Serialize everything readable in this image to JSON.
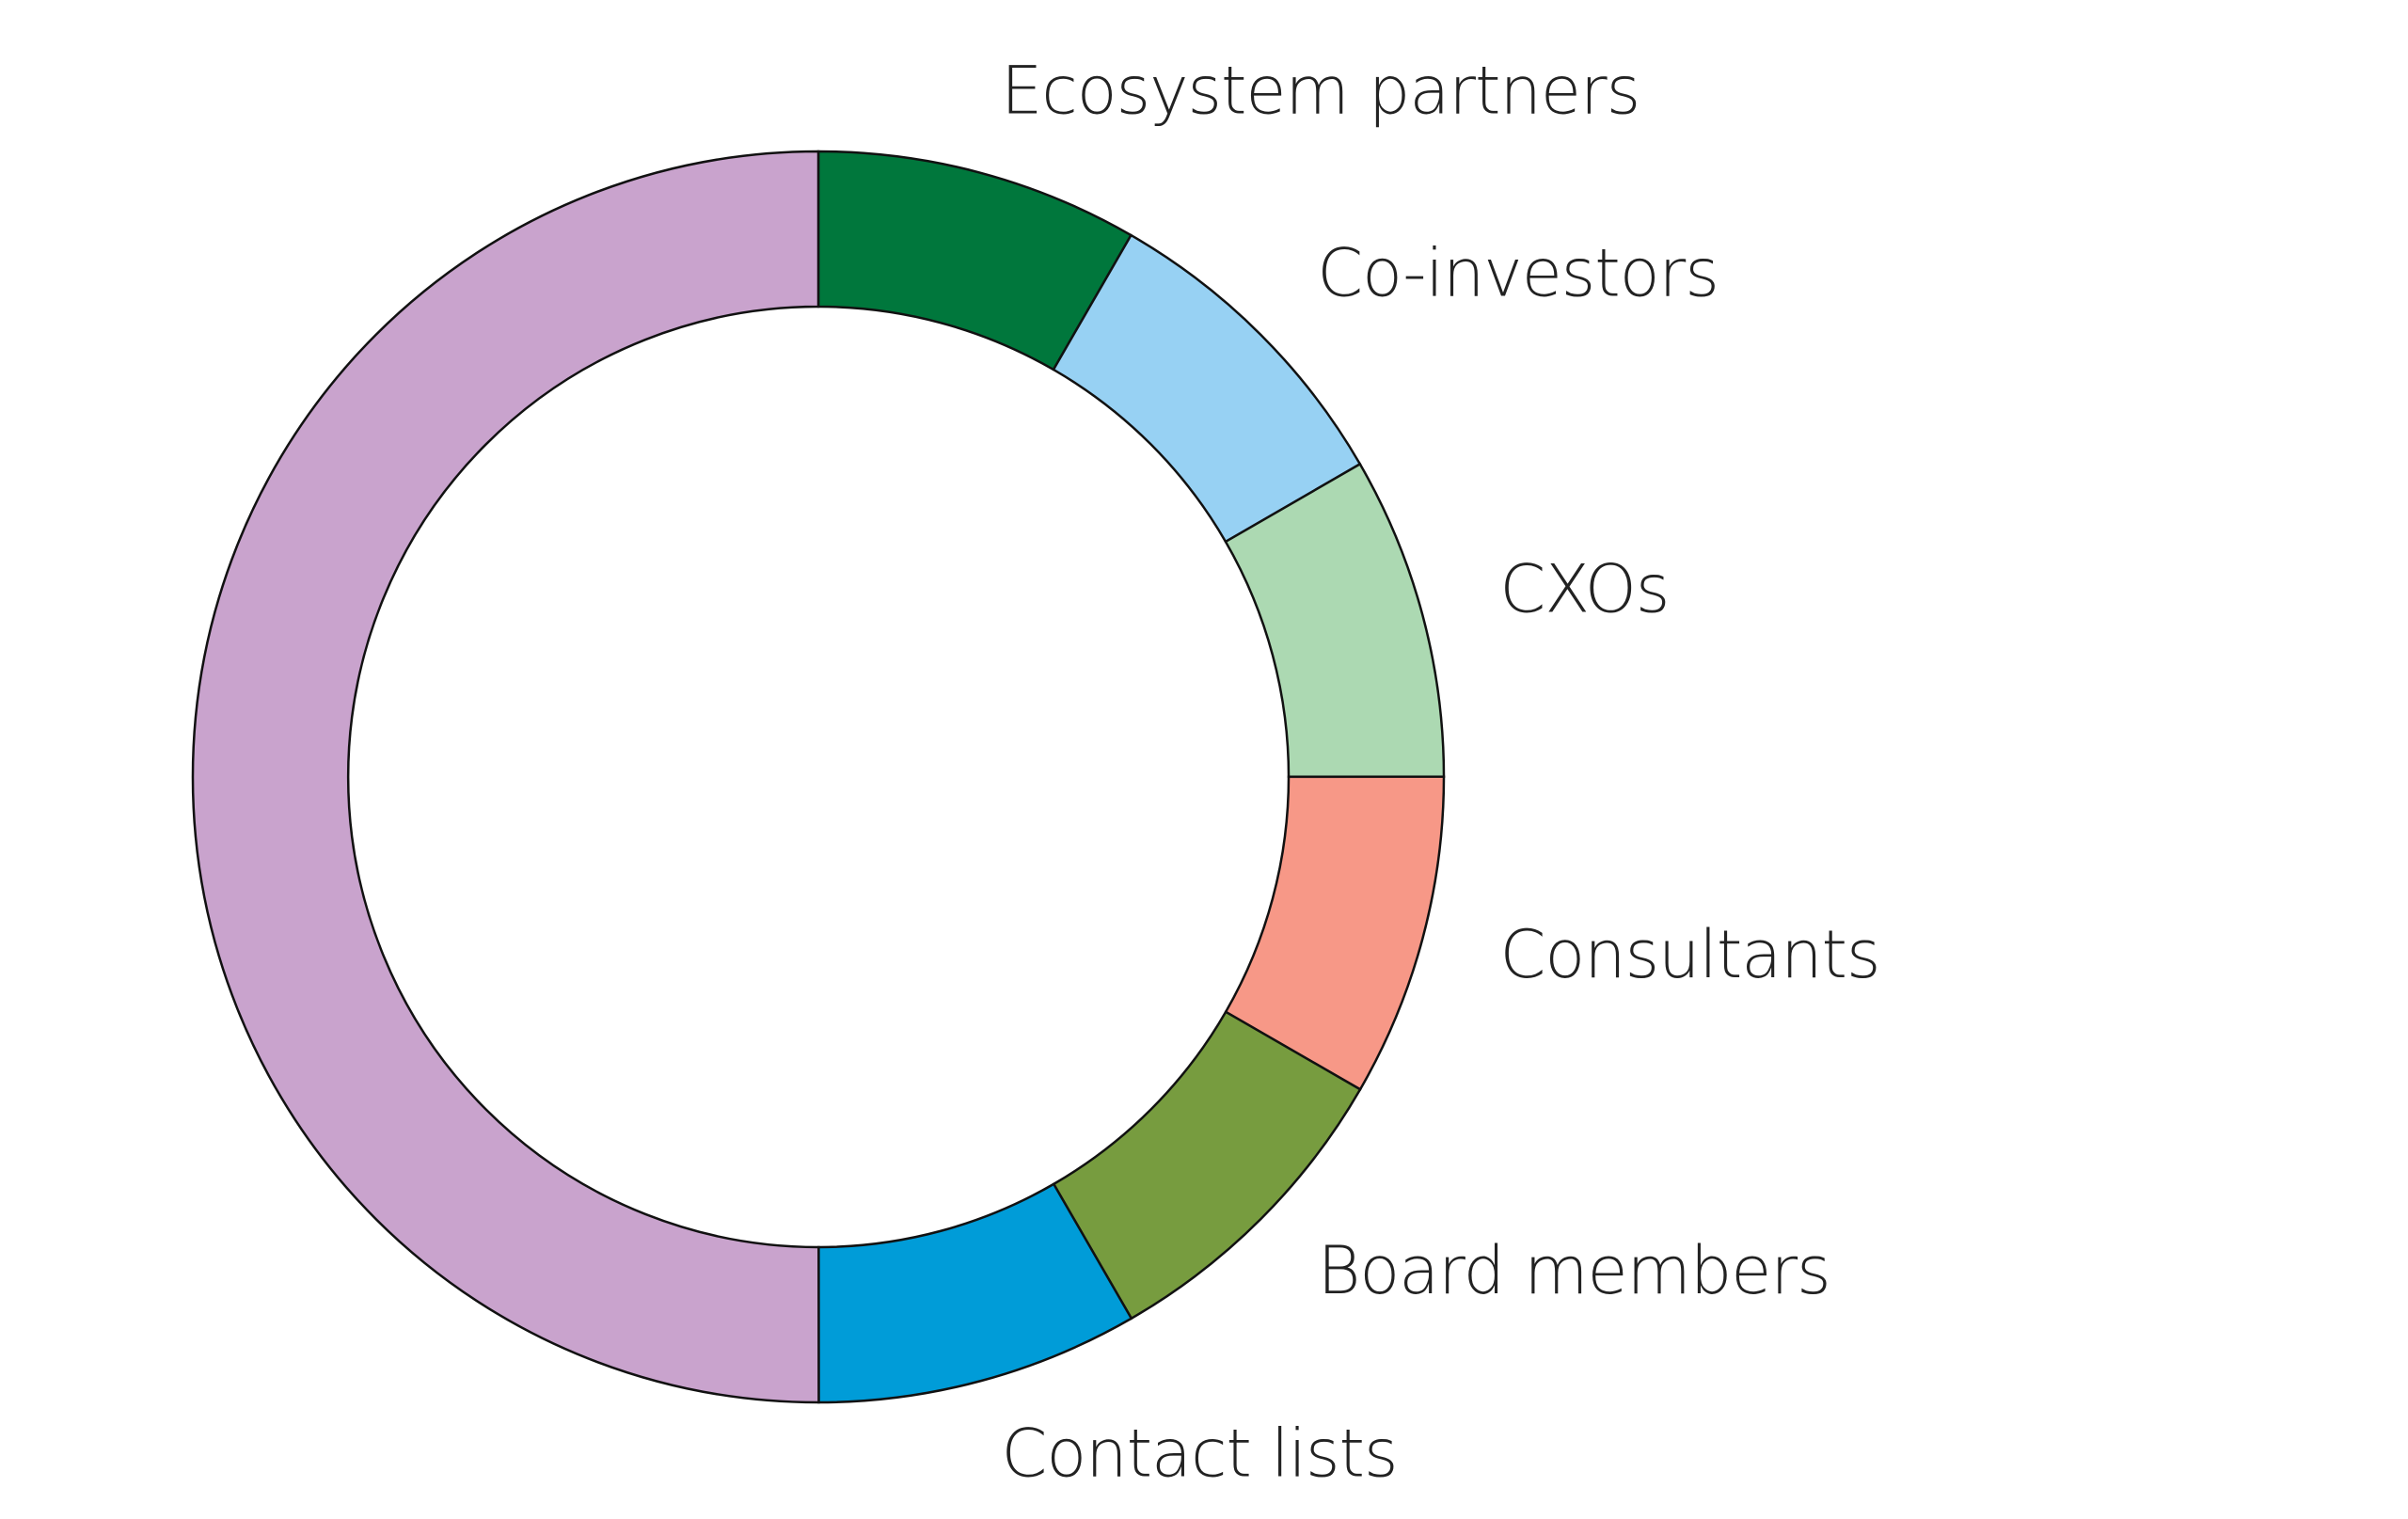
{
  "chart_data": {
    "type": "donut",
    "categories": [
      "Ecosystem partners",
      "Co-investors",
      "CXOs",
      "Consultants",
      "Board members",
      "Contact lists",
      null
    ],
    "values": [
      8.33,
      8.33,
      8.33,
      8.33,
      8.33,
      8.33,
      50
    ],
    "colors": [
      "#00773c",
      "#97d1f3",
      "#acd9b2",
      "#f79887",
      "#779c3f",
      "#009cd8",
      "#c9a3cd"
    ]
  }
}
